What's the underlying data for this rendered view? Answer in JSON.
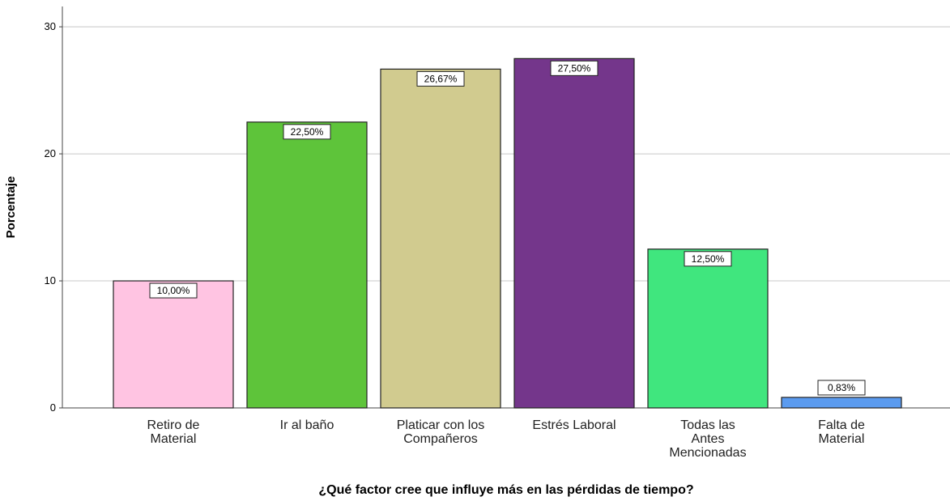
{
  "chart_data": {
    "type": "bar",
    "x_label": "¿Qué factor cree que influye más en las pérdidas de tiempo?",
    "y_label": "Porcentaje",
    "categories": [
      "Retiro de\nMaterial",
      "Ir al baño",
      "Platicar con los\nCompañeros",
      "Estrés Laboral",
      "Todas las\nAntes\nMencionadas",
      "Falta de\nMaterial"
    ],
    "values": [
      10.0,
      22.5,
      26.67,
      27.5,
      12.5,
      0.83
    ],
    "value_labels": [
      "10,00%",
      "22,50%",
      "26,67%",
      "27,50%",
      "12,50%",
      "0,83%"
    ],
    "colors": [
      "#ffc4e2",
      "#5ec43a",
      "#d1cb8f",
      "#74368b",
      "#40e67e",
      "#5b9bef"
    ],
    "ylim": [
      0,
      31.6
    ],
    "yticks": [
      0,
      10,
      20,
      30
    ],
    "grid": true
  }
}
